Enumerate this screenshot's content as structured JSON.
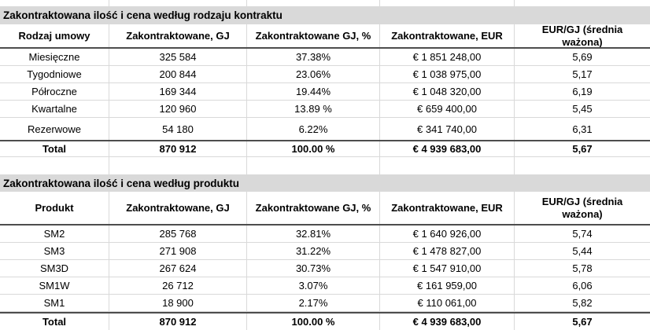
{
  "colors": {
    "section_title_bg": "#d9d9d9",
    "grid_line": "#d9d9d9",
    "strong_rule": "#4d4d4d"
  },
  "tables": [
    {
      "title": "Zakontraktowana ilość i cena według rodzaju kontraktu",
      "columns": [
        "Rodzaj umowy",
        "Zakontraktowane, GJ",
        "Zakontraktowane GJ, %",
        "Zakontraktowane, EUR",
        "EUR/GJ (średnia ważona)"
      ],
      "rows": [
        [
          "Miesięczne",
          "325 584",
          "37.38%",
          "€ 1 851 248,00",
          "5,69"
        ],
        [
          "Tygodniowe",
          "200 844",
          "23.06%",
          "€ 1 038 975,00",
          "5,17"
        ],
        [
          "Półroczne",
          "169 344",
          "19.44%",
          "€ 1 048 320,00",
          "6,19"
        ],
        [
          "Kwartalne",
          "120 960",
          "13.89 %",
          "€ 659 400,00",
          "5,45"
        ],
        [
          "Rezerwowe",
          "54 180",
          "6.22%",
          "€ 341 740,00",
          "6,31"
        ]
      ],
      "total": [
        "Total",
        "870 912",
        "100.00 %",
        "€ 4 939 683,00",
        "5,67"
      ]
    },
    {
      "title": "Zakontraktowana ilość i cena według produktu",
      "columns": [
        "Produkt",
        "Zakontraktowane, GJ",
        "Zakontraktowane GJ, %",
        "Zakontraktowane, EUR",
        "EUR/GJ (średnia ważona)"
      ],
      "rows": [
        [
          "SM2",
          "285 768",
          "32.81%",
          "€ 1 640 926,00",
          "5,74"
        ],
        [
          "SM3",
          "271 908",
          "31.22%",
          "€ 1 478 827,00",
          "5,44"
        ],
        [
          "SM3D",
          "267 624",
          "30.73%",
          "€ 1 547 910,00",
          "5,78"
        ],
        [
          "SM1W",
          "26 712",
          "3.07%",
          "€ 161 959,00",
          "6,06"
        ],
        [
          "SM1",
          "18 900",
          "2.17%",
          "€ 110 061,00",
          "5,82"
        ]
      ],
      "total": [
        "Total",
        "870 912",
        "100.00 %",
        "€ 4 939 683,00",
        "5,67"
      ]
    }
  ]
}
